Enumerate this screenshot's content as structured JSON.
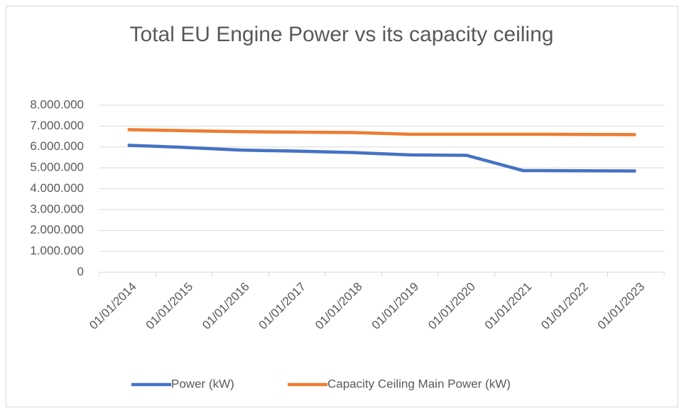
{
  "chart_data": {
    "type": "line",
    "title": "Total EU Engine Power vs its capacity ceiling",
    "categories": [
      "01/01/2014",
      "01/01/2015",
      "01/01/2016",
      "01/01/2017",
      "01/01/2018",
      "01/01/2019",
      "01/01/2020",
      "01/01/2021",
      "01/01/2022",
      "01/01/2023"
    ],
    "series": [
      {
        "name": "Power (kW)",
        "color": "#4472c4",
        "values": [
          6080000,
          5980000,
          5850000,
          5800000,
          5730000,
          5620000,
          5600000,
          4870000,
          4860000,
          4850000
        ]
      },
      {
        "name": "Capacity Ceiling Main Power (kW)",
        "color": "#ed7d31",
        "values": [
          6830000,
          6780000,
          6730000,
          6710000,
          6690000,
          6610000,
          6610000,
          6610000,
          6600000,
          6590000
        ]
      }
    ],
    "ylim": [
      0,
      8000000
    ],
    "yticks": [
      0,
      {
        "value": 1000000,
        "label": "1.000.000"
      },
      {
        "value": 2000000,
        "label": "2.000.000"
      },
      {
        "value": 3000000,
        "label": "3.000.000"
      },
      {
        "value": 4000000,
        "label": "4.000.000"
      },
      {
        "value": 5000000,
        "label": "5.000.000"
      },
      {
        "value": 6000000,
        "label": "6.000.000"
      },
      {
        "value": 7000000,
        "label": "7.000.000"
      },
      {
        "value": 8000000,
        "label": "8.000.000"
      }
    ],
    "grid": true,
    "legend": "bottom"
  }
}
